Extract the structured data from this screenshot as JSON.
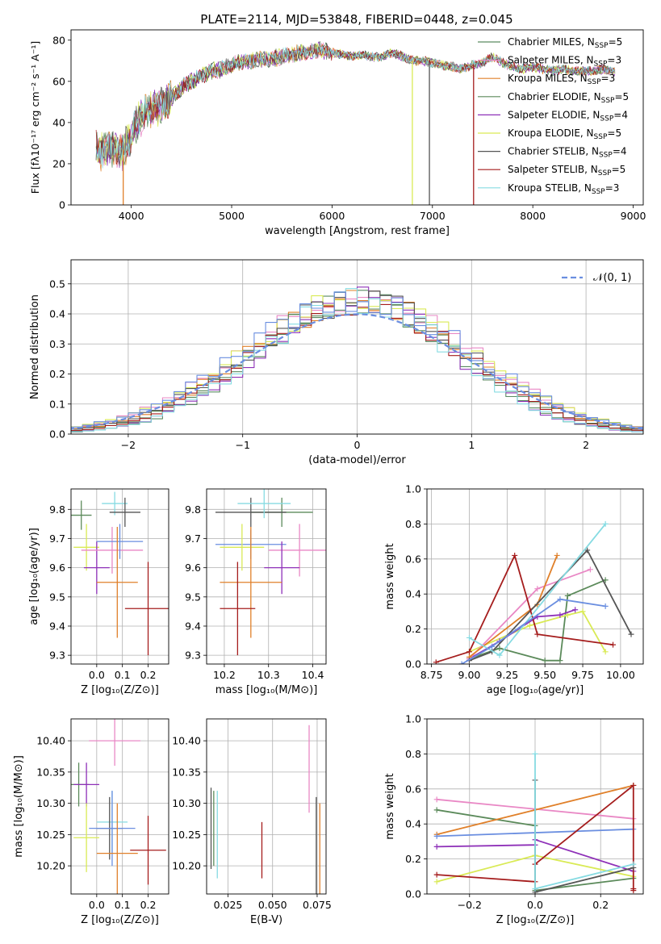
{
  "figure": {
    "title": "PLATE=2114, MJD=53848, FIBERID=0448, z=0.045"
  },
  "colors": {
    "Chabrier MILES": "#5a8a62",
    "Salpeter MILES": "#e988c5",
    "Kroupa MILES": "#e0802a",
    "Chabrier ELODIE": "#5b8a5a",
    "Salpeter ELODIE": "#8e30b8",
    "Kroupa ELODIE": "#d9ea55",
    "Chabrier STELIB": "#555555",
    "Salpeter STELIB": "#a51d1d",
    "Kroupa STELIB": "#86dbe2",
    "Salpeter STELIB 2": "#6a8ee0"
  },
  "chart_data": [
    {
      "id": "spectrum",
      "type": "line",
      "title": "PLATE=2114, MJD=53848, FIBERID=0448, z=0.045",
      "xlabel": "wavelength [Angstrom, rest frame]",
      "ylabel": "Flux [fλ10⁻¹⁷ erg cm⁻² s⁻¹ A⁻¹]",
      "xlim": [
        3400,
        9100
      ],
      "ylim": [
        0,
        85
      ],
      "xticks": [
        4000,
        5000,
        6000,
        7000,
        8000,
        9000
      ],
      "yticks": [
        0,
        20,
        40,
        60,
        80
      ],
      "grid": false,
      "legend_position": "right",
      "legend": [
        {
          "name": "Chabrier MILES, N_SSP=5",
          "base": "Chabrier MILES, N",
          "sub": "SSP",
          "tail": "=5",
          "color": "#5a8a62"
        },
        {
          "name": "Salpeter MILES, N_SSP=3",
          "base": "Salpeter MILES, N",
          "sub": "SSP",
          "tail": "=3",
          "color": "#e988c5"
        },
        {
          "name": "Kroupa MILES, N_SSP=3",
          "base": "Kroupa MILES, N",
          "sub": "SSP",
          "tail": "=3",
          "color": "#e0802a"
        },
        {
          "name": "Chabrier ELODIE, N_SSP=5",
          "base": "Chabrier ELODIE, N",
          "sub": "SSP",
          "tail": "=5",
          "color": "#5b8a5a"
        },
        {
          "name": "Salpeter ELODIE, N_SSP=4",
          "base": "Salpeter ELODIE, N",
          "sub": "SSP",
          "tail": "=4",
          "color": "#8e30b8"
        },
        {
          "name": "Kroupa ELODIE, N_SSP=5",
          "base": "Kroupa ELODIE, N",
          "sub": "SSP",
          "tail": "=5",
          "color": "#d9ea55"
        },
        {
          "name": "Chabrier STELIB, N_SSP=4",
          "base": "Chabrier STELIB, N",
          "sub": "SSP",
          "tail": "=4",
          "color": "#555555"
        },
        {
          "name": "Salpeter STELIB, N_SSP=5",
          "base": "Salpeter STELIB, N",
          "sub": "SSP",
          "tail": "=5",
          "color": "#a51d1d"
        },
        {
          "name": "Kroupa STELIB, N_SSP=3",
          "base": "Kroupa STELIB, N",
          "sub": "SSP",
          "tail": "=3",
          "color": "#86dbe2"
        }
      ],
      "continuum": [
        [
          3650,
          28
        ],
        [
          3700,
          26
        ],
        [
          3800,
          27
        ],
        [
          3900,
          25
        ],
        [
          4000,
          34
        ],
        [
          4100,
          43
        ],
        [
          4200,
          46
        ],
        [
          4300,
          48
        ],
        [
          4400,
          52
        ],
        [
          4500,
          57
        ],
        [
          4600,
          60
        ],
        [
          4700,
          63
        ],
        [
          4800,
          65
        ],
        [
          4900,
          66
        ],
        [
          5000,
          68
        ],
        [
          5100,
          69
        ],
        [
          5200,
          70
        ],
        [
          5300,
          71
        ],
        [
          5400,
          71
        ],
        [
          5500,
          72
        ],
        [
          5600,
          73
        ],
        [
          5700,
          74
        ],
        [
          5800,
          75
        ],
        [
          5900,
          75
        ],
        [
          6000,
          74
        ],
        [
          6100,
          73
        ],
        [
          6200,
          72
        ],
        [
          6300,
          73
        ],
        [
          6400,
          72
        ],
        [
          6500,
          72
        ],
        [
          6600,
          74
        ],
        [
          6700,
          72
        ],
        [
          6800,
          70
        ],
        [
          6900,
          70
        ],
        [
          7000,
          69
        ],
        [
          7100,
          68
        ],
        [
          7200,
          67
        ],
        [
          7300,
          66
        ],
        [
          7400,
          68
        ],
        [
          7500,
          69
        ],
        [
          7600,
          72
        ],
        [
          7700,
          69
        ],
        [
          7800,
          67
        ],
        [
          7900,
          66
        ],
        [
          8000,
          67
        ],
        [
          8100,
          66
        ],
        [
          8200,
          65
        ],
        [
          8300,
          66
        ],
        [
          8400,
          65
        ],
        [
          8500,
          65
        ],
        [
          8600,
          65
        ],
        [
          8700,
          66
        ],
        [
          8820,
          65
        ]
      ],
      "dropouts": [
        {
          "x": 3920,
          "color": "#e0802a"
        },
        {
          "x": 6800,
          "color": "#d9ea55"
        },
        {
          "x": 6970,
          "color": "#555555"
        },
        {
          "x": 7410,
          "color": "#a51d1d"
        }
      ]
    },
    {
      "id": "residual-histogram",
      "type": "histogram",
      "xlabel": "(data-model)/error",
      "ylabel": "Normed distribution",
      "xlim": [
        -2.5,
        2.5
      ],
      "ylim": [
        0,
        0.58
      ],
      "xticks": [
        -2,
        -1,
        0,
        1,
        2
      ],
      "yticks": [
        0.0,
        0.1,
        0.2,
        0.3,
        0.4,
        0.5
      ],
      "grid": true,
      "legend_position": "top-right",
      "reference_curve": {
        "name": "N(0,1)",
        "label": "𝒩(0, 1)",
        "mean": 0,
        "std": 1,
        "color": "#6a8ee0",
        "dashed": true
      },
      "bin_width": 0.1
    },
    {
      "id": "age-vs-Z",
      "type": "errorbar",
      "xlabel": "Z [log₁₀(Z/Z⊙)]",
      "ylabel": "age [log₁₀(age/yr)]",
      "xlim": [
        -0.1,
        0.28
      ],
      "ylim": [
        9.27,
        9.87
      ],
      "xticks": [
        0.0,
        0.1,
        0.2
      ],
      "yticks": [
        9.3,
        9.4,
        9.5,
        9.6,
        9.7,
        9.8
      ],
      "grid": true,
      "points": [
        {
          "x": -0.06,
          "y": 9.78,
          "xerr": 0.04,
          "yerr": 0.05,
          "color": "#5b8a5a"
        },
        {
          "x": -0.04,
          "y": 9.67,
          "xerr": 0.05,
          "yerr": 0.08,
          "color": "#d9ea55"
        },
        {
          "x": 0.0,
          "y": 9.6,
          "xerr": 0.05,
          "yerr": 0.09,
          "color": "#8e30b8"
        },
        {
          "x": 0.07,
          "y": 9.82,
          "xerr": 0.05,
          "yerr": 0.04,
          "color": "#86dbe2"
        },
        {
          "x": 0.06,
          "y": 9.66,
          "xerr": 0.12,
          "yerr": 0.08,
          "color": "#e988c5"
        },
        {
          "x": 0.11,
          "y": 9.79,
          "xerr": 0.06,
          "yerr": 0.05,
          "color": "#555555"
        },
        {
          "x": 0.09,
          "y": 9.69,
          "xerr": 0.09,
          "yerr": 0.06,
          "color": "#6a8ee0"
        },
        {
          "x": 0.08,
          "y": 9.55,
          "xerr": 0.08,
          "yerr": 0.19,
          "color": "#e0802a"
        },
        {
          "x": 0.2,
          "y": 9.46,
          "xerr": 0.09,
          "yerr": 0.16,
          "color": "#a51d1d"
        }
      ]
    },
    {
      "id": "age-vs-mass",
      "type": "errorbar",
      "xlabel": "mass [log₁₀(M/M⊙)]",
      "ylabel": "",
      "xlim": [
        10.16,
        10.43
      ],
      "ylim": [
        9.27,
        9.87
      ],
      "xticks": [
        10.2,
        10.3,
        10.4
      ],
      "yticks": [
        9.3,
        9.4,
        9.5,
        9.6,
        9.7,
        9.8
      ],
      "grid": true,
      "points": [
        {
          "x": 10.33,
          "y": 9.79,
          "xerr": 0.07,
          "yerr": 0.05,
          "color": "#5b8a5a"
        },
        {
          "x": 10.26,
          "y": 9.79,
          "xerr": 0.08,
          "yerr": 0.05,
          "color": "#555555"
        },
        {
          "x": 10.29,
          "y": 9.82,
          "xerr": 0.06,
          "yerr": 0.05,
          "color": "#86dbe2"
        },
        {
          "x": 10.26,
          "y": 9.68,
          "xerr": 0.08,
          "yerr": 0.05,
          "color": "#6a8ee0"
        },
        {
          "x": 10.24,
          "y": 9.67,
          "xerr": 0.05,
          "yerr": 0.08,
          "color": "#d9ea55"
        },
        {
          "x": 10.37,
          "y": 9.66,
          "xerr": 0.07,
          "yerr": 0.09,
          "color": "#e988c5"
        },
        {
          "x": 10.33,
          "y": 9.6,
          "xerr": 0.04,
          "yerr": 0.09,
          "color": "#8e30b8"
        },
        {
          "x": 10.26,
          "y": 9.55,
          "xerr": 0.07,
          "yerr": 0.19,
          "color": "#e0802a"
        },
        {
          "x": 10.23,
          "y": 9.46,
          "xerr": 0.04,
          "yerr": 0.16,
          "color": "#a51d1d"
        }
      ]
    },
    {
      "id": "mass-weight-vs-age",
      "type": "line",
      "xlabel": "age [log₁₀(age/yr)]",
      "ylabel": "mass weight",
      "xlim": [
        8.72,
        10.15
      ],
      "ylim": [
        0,
        1.0
      ],
      "xticks": [
        8.75,
        9.0,
        9.25,
        9.5,
        9.75,
        10.0
      ],
      "yticks": [
        0.0,
        0.2,
        0.4,
        0.6,
        0.8,
        1.0
      ],
      "grid": true,
      "series": [
        {
          "color": "#5b8a5a",
          "x": [
            9.0,
            9.2,
            9.5,
            9.6,
            9.65,
            9.9
          ],
          "y": [
            0.03,
            0.09,
            0.02,
            0.02,
            0.39,
            0.48
          ]
        },
        {
          "color": "#d9ea55",
          "x": [
            9.0,
            9.4,
            9.65,
            9.75,
            9.9
          ],
          "y": [
            0.07,
            0.22,
            0.28,
            0.3,
            0.07
          ]
        },
        {
          "color": "#8e30b8",
          "x": [
            9.0,
            9.2,
            9.45,
            9.6,
            9.7
          ],
          "y": [
            0.03,
            0.13,
            0.27,
            0.28,
            0.31
          ]
        },
        {
          "color": "#e988c5",
          "x": [
            9.0,
            9.45,
            9.8
          ],
          "y": [
            0.03,
            0.43,
            0.54
          ]
        },
        {
          "color": "#e0802a",
          "x": [
            9.0,
            9.45,
            9.58
          ],
          "y": [
            0.04,
            0.34,
            0.62
          ]
        },
        {
          "color": "#555555",
          "x": [
            9.0,
            9.15,
            9.78,
            10.07
          ],
          "y": [
            0.02,
            0.07,
            0.65,
            0.17
          ]
        },
        {
          "color": "#a51d1d",
          "x": [
            8.78,
            9.0,
            9.3,
            9.45,
            9.95
          ],
          "y": [
            0.01,
            0.07,
            0.62,
            0.17,
            0.11
          ]
        },
        {
          "color": "#86dbe2",
          "x": [
            9.0,
            9.2,
            9.9
          ],
          "y": [
            0.15,
            0.05,
            0.8
          ]
        },
        {
          "color": "#6a8ee0",
          "x": [
            8.95,
            9.15,
            9.6,
            9.9
          ],
          "y": [
            0.0,
            0.1,
            0.37,
            0.33
          ]
        }
      ]
    },
    {
      "id": "mass-vs-Z",
      "type": "errorbar",
      "xlabel": "Z [log₁₀(Z/Z⊙)]",
      "ylabel": "mass [log₁₀(M/M⊙)]",
      "xlim": [
        -0.1,
        0.28
      ],
      "ylim": [
        10.155,
        10.435
      ],
      "xticks": [
        0.0,
        0.1,
        0.2
      ],
      "yticks": [
        10.2,
        10.25,
        10.3,
        10.35,
        10.4
      ],
      "grid": true,
      "points": [
        {
          "x": -0.07,
          "y": 10.33,
          "xerr": 0.04,
          "yerr": 0.035,
          "color": "#5b8a5a"
        },
        {
          "x": -0.04,
          "y": 10.33,
          "xerr": 0.05,
          "yerr": 0.035,
          "color": "#8e30b8"
        },
        {
          "x": -0.04,
          "y": 10.245,
          "xerr": 0.05,
          "yerr": 0.055,
          "color": "#d9ea55"
        },
        {
          "x": 0.07,
          "y": 10.4,
          "xerr": 0.1,
          "yerr": 0.04,
          "color": "#e988c5"
        },
        {
          "x": 0.06,
          "y": 10.27,
          "xerr": 0.06,
          "yerr": 0.05,
          "color": "#86dbe2"
        },
        {
          "x": 0.05,
          "y": 10.26,
          "xerr": 0.05,
          "yerr": 0.05,
          "color": "#555555"
        },
        {
          "x": 0.06,
          "y": 10.26,
          "xerr": 0.09,
          "yerr": 0.06,
          "color": "#6a8ee0"
        },
        {
          "x": 0.08,
          "y": 10.22,
          "xerr": 0.08,
          "yerr": 0.08,
          "color": "#e0802a"
        },
        {
          "x": 0.2,
          "y": 10.225,
          "xerr": 0.07,
          "yerr": 0.055,
          "color": "#a51d1d"
        }
      ]
    },
    {
      "id": "mass-vs-EBV",
      "type": "errorbar",
      "xlabel": "E(B-V)",
      "ylabel": "",
      "xlim": [
        0.013,
        0.08
      ],
      "ylim": [
        10.155,
        10.435
      ],
      "xticks": [
        0.025,
        0.05,
        0.075
      ],
      "yticks": [
        10.2,
        10.25,
        10.3,
        10.35,
        10.4
      ],
      "grid": true,
      "points": [
        {
          "x": 0.0155,
          "y": 10.26,
          "xerr": 0,
          "yerr": 0.065,
          "color": "#555555"
        },
        {
          "x": 0.017,
          "y": 10.26,
          "xerr": 0,
          "yerr": 0.06,
          "color": "#5b8a5a"
        },
        {
          "x": 0.019,
          "y": 10.25,
          "xerr": 0,
          "yerr": 0.07,
          "color": "#86dbe2"
        },
        {
          "x": 0.044,
          "y": 10.225,
          "xerr": 0,
          "yerr": 0.045,
          "color": "#a51d1d"
        },
        {
          "x": 0.0705,
          "y": 10.355,
          "xerr": 0,
          "yerr": 0.07,
          "color": "#e988c5"
        },
        {
          "x": 0.0745,
          "y": 10.23,
          "xerr": 0,
          "yerr": 0.08,
          "color": "#555555"
        },
        {
          "x": 0.0765,
          "y": 10.2,
          "xerr": 0,
          "yerr": 0.1,
          "color": "#e0802a"
        }
      ]
    },
    {
      "id": "mass-weight-vs-Z",
      "type": "line",
      "xlabel": "Z [log₁₀(Z/Z⊙)]",
      "ylabel": "mass weight",
      "xlim": [
        -0.33,
        0.33
      ],
      "ylim": [
        0,
        1.0
      ],
      "xticks": [
        -0.2,
        0.0,
        0.2
      ],
      "yticks": [
        0.0,
        0.2,
        0.4,
        0.6,
        0.8,
        1.0
      ],
      "grid": true,
      "series": [
        {
          "color": "#e988c5",
          "x": [
            -0.3,
            0.3
          ],
          "y": [
            0.54,
            0.43
          ]
        },
        {
          "color": "#5b8a5a",
          "x": [
            -0.3,
            0.0,
            0.0,
            0.3
          ],
          "y": [
            0.48,
            0.39,
            0.02,
            0.09
          ]
        },
        {
          "color": "#e0802a",
          "x": [
            -0.3,
            0.3
          ],
          "y": [
            0.34,
            0.62
          ]
        },
        {
          "color": "#6a8ee0",
          "x": [
            -0.3,
            0.3
          ],
          "y": [
            0.33,
            0.37
          ]
        },
        {
          "color": "#8e30b8",
          "x": [
            -0.3,
            0.0,
            0.0,
            0.3
          ],
          "y": [
            0.27,
            0.28,
            0.31,
            0.13
          ]
        },
        {
          "color": "#d9ea55",
          "x": [
            -0.3,
            0.0,
            0.3
          ],
          "y": [
            0.07,
            0.22,
            0.1
          ]
        },
        {
          "color": "#a51d1d",
          "x": [
            -0.3,
            0.0,
            0.0,
            0.3,
            0.3,
            0.3
          ],
          "y": [
            0.11,
            0.07,
            0.17,
            0.62,
            0.03,
            0.02
          ]
        },
        {
          "color": "#555555",
          "x": [
            0.0,
            0.0,
            0.3
          ],
          "y": [
            0.65,
            0.01,
            0.15
          ]
        },
        {
          "color": "#86dbe2",
          "x": [
            0.0,
            0.0,
            0.3
          ],
          "y": [
            0.8,
            0.03,
            0.17
          ]
        }
      ]
    }
  ]
}
